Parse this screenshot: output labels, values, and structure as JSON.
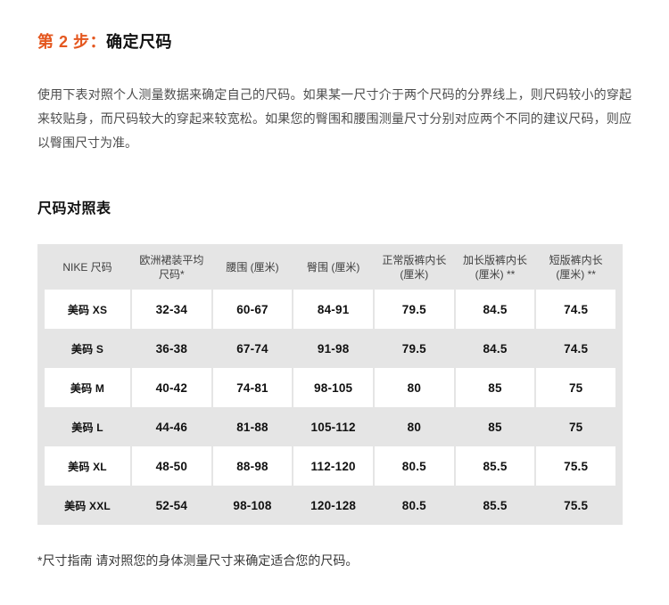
{
  "colors": {
    "accent_orange": "#e4571f",
    "table_gray": "#e5e5e5",
    "heading_text": "#111111",
    "body_text": "#4d4d4d",
    "divider": "#e8e8e8"
  },
  "step_header": {
    "prefix": "第 2 步：",
    "title": "确定尺码"
  },
  "intro": "使用下表对照个人测量数据来确定自己的尺码。如果某一尺寸介于两个尺码的分界线上，则尺码较小的穿起来较贴身，而尺码较大的穿起来较宽松。如果您的臀围和腰围测量尺寸分别对应两个不同的建议尺码，则应以臀围尺寸为准。",
  "table_heading": "尺码对照表",
  "size_table": {
    "columns": [
      {
        "lines": [
          "NIKE 尺码",
          ""
        ]
      },
      {
        "lines": [
          "欧洲裙装平均",
          "尺码*"
        ]
      },
      {
        "lines": [
          "腰围 (厘米)",
          ""
        ]
      },
      {
        "lines": [
          "臀围 (厘米)",
          ""
        ]
      },
      {
        "lines": [
          "正常版裤内长",
          "(厘米)"
        ]
      },
      {
        "lines": [
          "加长版裤内长",
          "(厘米) **"
        ]
      },
      {
        "lines": [
          "短版裤内长",
          "(厘米) **"
        ]
      }
    ],
    "rows": [
      {
        "cells": [
          "美码 XS",
          "32-34",
          "60-67",
          "84-91",
          "79.5",
          "84.5",
          "74.5"
        ]
      },
      {
        "cells": [
          "美码 S",
          "36-38",
          "67-74",
          "91-98",
          "79.5",
          "84.5",
          "74.5"
        ]
      },
      {
        "cells": [
          "美码 M",
          "40-42",
          "74-81",
          "98-105",
          "80",
          "85",
          "75"
        ]
      },
      {
        "cells": [
          "美码 L",
          "44-46",
          "81-88",
          "105-112",
          "80",
          "85",
          "75"
        ]
      },
      {
        "cells": [
          "美码 XL",
          "48-50",
          "88-98",
          "112-120",
          "80.5",
          "85.5",
          "75.5"
        ]
      },
      {
        "cells": [
          "美码 XXL",
          "52-54",
          "98-108",
          "120-128",
          "80.5",
          "85.5",
          "75.5"
        ]
      }
    ]
  },
  "footnote": "*尺寸指南 请对照您的身体测量尺寸来确定适合您的尺码。"
}
